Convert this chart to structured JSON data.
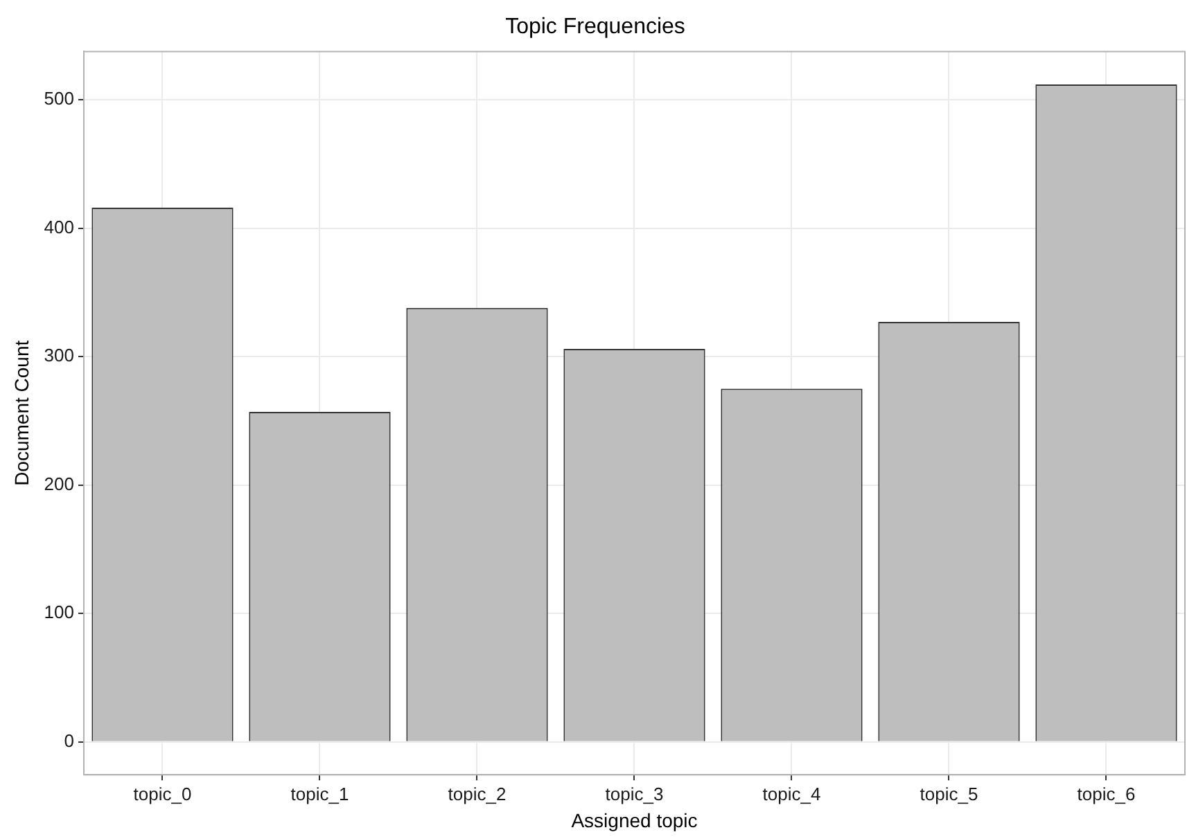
{
  "chart_data": {
    "type": "bar",
    "title": "Topic Frequencies",
    "xlabel": "Assigned topic",
    "ylabel": "Document Count",
    "categories": [
      "topic_0",
      "topic_1",
      "topic_2",
      "topic_3",
      "topic_4",
      "topic_5",
      "topic_6"
    ],
    "values": [
      416,
      257,
      338,
      306,
      275,
      327,
      512
    ],
    "color": "#bebebe",
    "ylim": [
      -25.6,
      537.6
    ],
    "yticks": [
      0,
      100,
      200,
      300,
      400,
      500
    ],
    "grid": true
  }
}
